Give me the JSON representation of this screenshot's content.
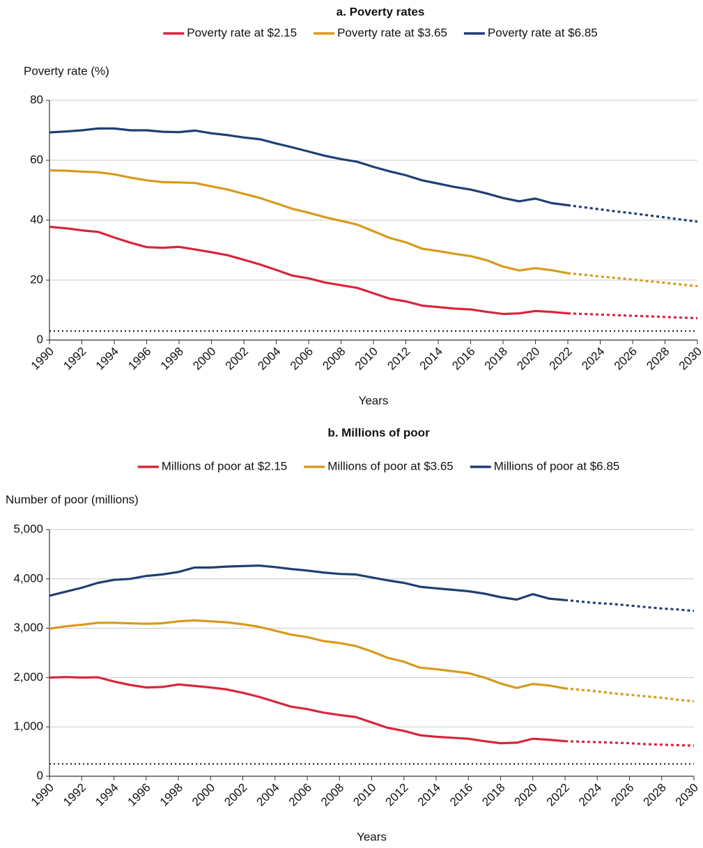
{
  "chart_data": [
    {
      "type": "line",
      "title": "a. Poverty rates",
      "y_label": "Poverty rate (%)",
      "x_label": "Years",
      "x": [
        1990,
        1991,
        1992,
        1993,
        1994,
        1995,
        1996,
        1997,
        1998,
        1999,
        2000,
        2001,
        2002,
        2003,
        2004,
        2005,
        2006,
        2007,
        2008,
        2009,
        2010,
        2011,
        2012,
        2013,
        2014,
        2015,
        2016,
        2017,
        2018,
        2019,
        2020,
        2021,
        2022,
        2023,
        2024,
        2025,
        2026,
        2027,
        2028,
        2029,
        2030
      ],
      "xlim": [
        1990,
        2030
      ],
      "xticks": [
        1990,
        1992,
        1994,
        1996,
        1998,
        2000,
        2002,
        2004,
        2006,
        2008,
        2010,
        2012,
        2014,
        2016,
        2018,
        2020,
        2022,
        2024,
        2026,
        2028,
        2030
      ],
      "ylim": [
        0,
        80
      ],
      "yticks": [
        0,
        20,
        40,
        60,
        80
      ],
      "grid": true,
      "forecast_from": 2022,
      "hline": 3,
      "series": [
        {
          "name": "Poverty rate at $2.15",
          "color": "#d7263d",
          "values": [
            37.8,
            37.3,
            36.6,
            36.1,
            34.2,
            32.5,
            31.0,
            30.8,
            31.1,
            30.2,
            29.3,
            28.3,
            26.8,
            25.2,
            23.4,
            21.5,
            20.6,
            19.2,
            18.3,
            17.4,
            15.6,
            13.8,
            12.9,
            11.5,
            11.0,
            10.5,
            10.2,
            9.4,
            8.7,
            8.9,
            9.7,
            9.4,
            8.9,
            8.7,
            8.5,
            8.3,
            8.1,
            7.9,
            7.7,
            7.5,
            7.3
          ]
        },
        {
          "name": "Poverty rate at $3.65",
          "color": "#d89a1c",
          "values": [
            56.6,
            56.5,
            56.2,
            56.0,
            55.3,
            54.2,
            53.3,
            52.7,
            52.6,
            52.4,
            51.3,
            50.2,
            48.8,
            47.4,
            45.6,
            43.8,
            42.5,
            41.0,
            39.8,
            38.5,
            36.3,
            34.1,
            32.6,
            30.5,
            29.7,
            28.8,
            28.0,
            26.6,
            24.5,
            23.2,
            24.0,
            23.3,
            22.3,
            21.8,
            21.2,
            20.7,
            20.2,
            19.6,
            19.1,
            18.5,
            18.0
          ]
        },
        {
          "name": "Poverty rate at $6.85",
          "color": "#1f3f73",
          "values": [
            69.3,
            69.6,
            70.0,
            70.6,
            70.6,
            70.0,
            70.0,
            69.5,
            69.4,
            69.9,
            69.0,
            68.4,
            67.6,
            67.0,
            65.6,
            64.3,
            62.9,
            61.5,
            60.4,
            59.5,
            57.8,
            56.3,
            55.0,
            53.3,
            52.2,
            51.1,
            50.2,
            48.9,
            47.4,
            46.3,
            47.2,
            45.7,
            45.0,
            44.3,
            43.6,
            42.9,
            42.3,
            41.6,
            40.9,
            40.2,
            39.5
          ]
        }
      ]
    },
    {
      "type": "line",
      "title": "b. Millions of poor",
      "y_label": "Number of poor (millions)",
      "x_label": "Years",
      "x": [
        1990,
        1991,
        1992,
        1993,
        1994,
        1995,
        1996,
        1997,
        1998,
        1999,
        2000,
        2001,
        2002,
        2003,
        2004,
        2005,
        2006,
        2007,
        2008,
        2009,
        2010,
        2011,
        2012,
        2013,
        2014,
        2015,
        2016,
        2017,
        2018,
        2019,
        2020,
        2021,
        2022,
        2023,
        2024,
        2025,
        2026,
        2027,
        2028,
        2029,
        2030
      ],
      "xlim": [
        1990,
        2030
      ],
      "xticks": [
        1990,
        1992,
        1994,
        1996,
        1998,
        2000,
        2002,
        2004,
        2006,
        2008,
        2010,
        2012,
        2014,
        2016,
        2018,
        2020,
        2022,
        2024,
        2026,
        2028,
        2030
      ],
      "ylim": [
        0,
        5000
      ],
      "yticks": [
        0,
        {
          "value": 1000,
          "label": "1,000"
        },
        {
          "value": 2000,
          "label": "2,000"
        },
        {
          "value": 3000,
          "label": "3,000"
        },
        {
          "value": 4000,
          "label": "4,000"
        },
        {
          "value": 5000,
          "label": "5,000"
        }
      ],
      "grid": true,
      "forecast_from": 2022,
      "hline": 250,
      "series": [
        {
          "name": "Millions of poor at $2.15",
          "color": "#d7263d",
          "values": [
            2000,
            2010,
            2000,
            2005,
            1920,
            1850,
            1800,
            1810,
            1860,
            1830,
            1800,
            1760,
            1690,
            1610,
            1510,
            1410,
            1360,
            1290,
            1240,
            1200,
            1090,
            980,
            920,
            830,
            800,
            780,
            760,
            710,
            670,
            680,
            760,
            740,
            710,
            700,
            690,
            680,
            670,
            650,
            640,
            630,
            620
          ]
        },
        {
          "name": "Millions of poor at $3.65",
          "color": "#d89a1c",
          "values": [
            2990,
            3040,
            3070,
            3110,
            3110,
            3100,
            3090,
            3100,
            3140,
            3160,
            3140,
            3120,
            3080,
            3030,
            2950,
            2870,
            2820,
            2740,
            2700,
            2640,
            2530,
            2400,
            2320,
            2200,
            2170,
            2130,
            2090,
            2000,
            1880,
            1790,
            1870,
            1840,
            1780,
            1750,
            1720,
            1680,
            1650,
            1620,
            1590,
            1550,
            1520
          ]
        },
        {
          "name": "Millions of poor at $6.85",
          "color": "#1f3f73",
          "values": [
            3660,
            3740,
            3820,
            3920,
            3980,
            4000,
            4060,
            4090,
            4140,
            4230,
            4230,
            4250,
            4260,
            4270,
            4240,
            4200,
            4170,
            4130,
            4100,
            4090,
            4030,
            3970,
            3920,
            3840,
            3810,
            3780,
            3750,
            3700,
            3630,
            3580,
            3690,
            3600,
            3570,
            3540,
            3510,
            3490,
            3460,
            3430,
            3400,
            3380,
            3350
          ]
        }
      ]
    }
  ]
}
